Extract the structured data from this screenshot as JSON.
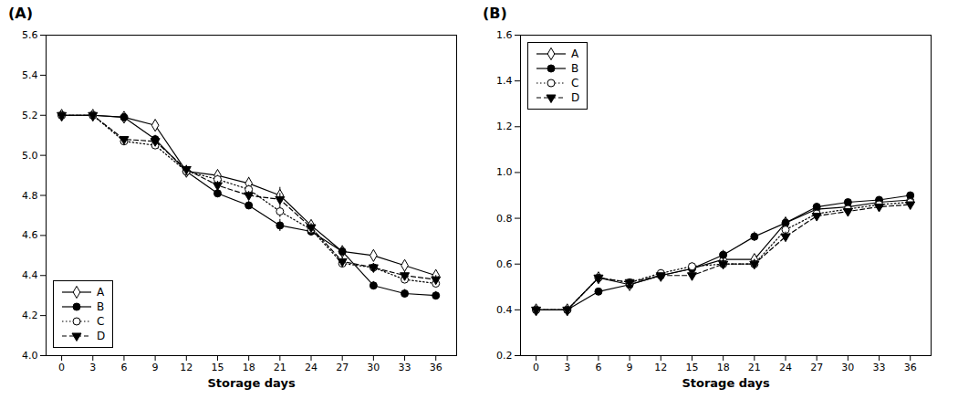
{
  "chart_data": [
    {
      "type": "line",
      "title": "(A)",
      "x_label": "Storage days",
      "x": [
        0,
        3,
        6,
        9,
        12,
        15,
        18,
        21,
        24,
        27,
        30,
        33,
        36
      ],
      "xlim": [
        -1.5,
        38
      ],
      "xticks": [
        0,
        3,
        6,
        9,
        12,
        15,
        18,
        21,
        24,
        27,
        30,
        33,
        36
      ],
      "ylim": [
        4.0,
        5.6
      ],
      "yticks": [
        {
          "value": 4.0,
          "label": "4.0"
        },
        4.2,
        4.4,
        4.6,
        4.8,
        {
          "value": 5.0,
          "label": "5.0"
        },
        5.2,
        5.4,
        5.6
      ],
      "grid": false,
      "legend": "lower left",
      "series": [
        {
          "name": "A",
          "color": "#000000",
          "marker": "open_diamond",
          "line_style": "solid",
          "values": [
            5.2,
            5.2,
            5.19,
            5.15,
            4.92,
            4.9,
            4.86,
            4.8,
            4.65,
            4.52,
            4.5,
            4.45,
            4.4
          ],
          "errors": [
            0.01,
            0.01,
            0.01,
            0.02,
            0.02,
            0.02,
            0.03,
            0.04,
            0.02,
            0.02,
            0.02,
            0.02,
            0.02
          ]
        },
        {
          "name": "B",
          "color": "#000000",
          "marker": "filled_circle",
          "line_style": "solid",
          "values": [
            5.2,
            5.2,
            5.19,
            5.08,
            4.92,
            4.81,
            4.75,
            4.65,
            4.62,
            4.52,
            4.35,
            4.31,
            4.3
          ],
          "errors": [
            0.01,
            0.01,
            0.01,
            0.02,
            0.02,
            0.02,
            0.02,
            0.03,
            0.02,
            0.02,
            0.02,
            0.02,
            0.02
          ]
        },
        {
          "name": "C",
          "color": "#000000",
          "marker": "open_circle",
          "line_style": "dotted",
          "values": [
            5.2,
            5.2,
            5.07,
            5.05,
            4.92,
            4.88,
            4.83,
            4.72,
            4.63,
            4.46,
            4.44,
            4.38,
            4.36
          ],
          "errors": [
            0.01,
            0.01,
            0.01,
            0.02,
            0.02,
            0.02,
            0.02,
            0.03,
            0.02,
            0.02,
            0.02,
            0.02,
            0.02
          ]
        },
        {
          "name": "D",
          "color": "#000000",
          "marker": "filled_triangle_down",
          "line_style": "dashed",
          "values": [
            5.2,
            5.2,
            5.08,
            5.07,
            4.93,
            4.85,
            4.8,
            4.78,
            4.64,
            4.47,
            4.44,
            4.4,
            4.38
          ],
          "errors": [
            0.01,
            0.01,
            0.01,
            0.02,
            0.02,
            0.02,
            0.02,
            0.03,
            0.02,
            0.02,
            0.02,
            0.02,
            0.02
          ]
        }
      ]
    },
    {
      "type": "line",
      "title": "(B)",
      "x_label": "Storage days",
      "x": [
        0,
        3,
        6,
        9,
        12,
        15,
        18,
        21,
        24,
        27,
        30,
        33,
        36
      ],
      "xlim": [
        -1.5,
        38
      ],
      "xticks": [
        0,
        3,
        6,
        9,
        12,
        15,
        18,
        21,
        24,
        27,
        30,
        33,
        36
      ],
      "ylim": [
        0.2,
        1.6
      ],
      "yticks": [
        0.2,
        0.4,
        0.6,
        0.8,
        {
          "value": 1.0,
          "label": "1.0"
        },
        1.2,
        1.4,
        1.6
      ],
      "grid": false,
      "legend": "upper left",
      "series": [
        {
          "name": "A",
          "color": "#000000",
          "marker": "open_diamond",
          "line_style": "solid",
          "values": [
            0.4,
            0.4,
            0.54,
            0.51,
            0.55,
            0.58,
            0.62,
            0.62,
            0.78,
            0.84,
            0.85,
            0.87,
            0.88
          ],
          "errors": [
            0.01,
            0.01,
            0.01,
            0.01,
            0.01,
            0.01,
            0.02,
            0.02,
            0.02,
            0.01,
            0.01,
            0.01,
            0.01
          ]
        },
        {
          "name": "B",
          "color": "#000000",
          "marker": "filled_circle",
          "line_style": "solid",
          "values": [
            0.4,
            0.4,
            0.48,
            0.51,
            0.55,
            0.58,
            0.64,
            0.72,
            0.78,
            0.85,
            0.87,
            0.88,
            0.9
          ],
          "errors": [
            0.01,
            0.01,
            0.01,
            0.01,
            0.01,
            0.01,
            0.02,
            0.02,
            0.02,
            0.01,
            0.01,
            0.01,
            0.01
          ]
        },
        {
          "name": "C",
          "color": "#000000",
          "marker": "open_circle",
          "line_style": "dotted",
          "values": [
            0.4,
            0.4,
            0.54,
            0.52,
            0.56,
            0.59,
            0.6,
            0.6,
            0.75,
            0.82,
            0.84,
            0.86,
            0.87
          ],
          "errors": [
            0.01,
            0.01,
            0.01,
            0.01,
            0.01,
            0.01,
            0.02,
            0.02,
            0.02,
            0.01,
            0.01,
            0.01,
            0.01
          ]
        },
        {
          "name": "D",
          "color": "#000000",
          "marker": "filled_triangle_down",
          "line_style": "dashed",
          "values": [
            0.4,
            0.4,
            0.54,
            0.52,
            0.55,
            0.55,
            0.6,
            0.6,
            0.72,
            0.81,
            0.83,
            0.85,
            0.86
          ],
          "errors": [
            0.01,
            0.01,
            0.01,
            0.01,
            0.01,
            0.01,
            0.02,
            0.02,
            0.02,
            0.01,
            0.01,
            0.01,
            0.01
          ]
        }
      ]
    }
  ]
}
